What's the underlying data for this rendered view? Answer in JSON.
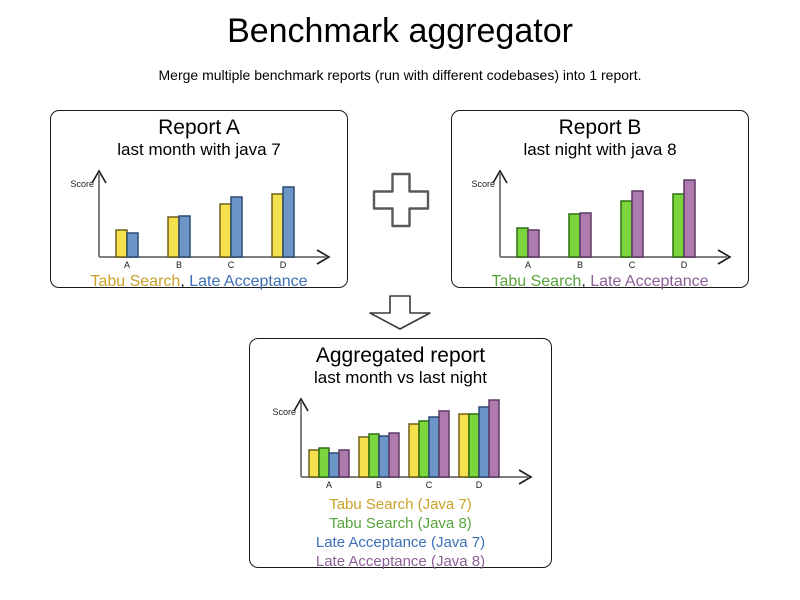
{
  "header": {
    "title": "Benchmark aggregator",
    "subtitle": "Merge multiple benchmark reports (run with different codebases) into 1 report."
  },
  "icons": {
    "plus": "plus",
    "down_arrow": "down-arrow"
  },
  "reports": [
    {
      "title": "Report A",
      "subtitle": "last month with java 7",
      "legend": [
        {
          "text": "Tabu Search",
          "color": "#C9A227"
        },
        {
          "text": ", ",
          "color": "#1A1A1A"
        },
        {
          "text": "Late Acceptance",
          "color": "#3E6FB7"
        }
      ]
    },
    {
      "title": "Report B",
      "subtitle": "last night with java 8",
      "legend": [
        {
          "text": "Tabu Search",
          "color": "#58A43C"
        },
        {
          "text": ", ",
          "color": "#1A1A1A"
        },
        {
          "text": "Late Acceptance",
          "color": "#8D5F97"
        }
      ]
    },
    {
      "title": "Aggregated report",
      "subtitle": "last month vs last night",
      "legend": [
        {
          "text": "Tabu Search (Java 7)",
          "color": "#C9A227"
        },
        {
          "text": "Tabu Search (Java 8)",
          "color": "#58A43C"
        },
        {
          "text": "Late Acceptance (Java 7)",
          "color": "#3E6FB7"
        },
        {
          "text": "Late Acceptance (Java 8)",
          "color": "#8D5F97"
        }
      ]
    }
  ],
  "chart_data": [
    {
      "type": "bar",
      "title": "Report A",
      "subtitle": "last month with java 7",
      "categories": [
        "A",
        "B",
        "C",
        "D"
      ],
      "series": [
        {
          "name": "Tabu Search",
          "values": [
            0.3,
            0.44,
            0.59,
            0.7
          ],
          "fill": "#F5E14E",
          "stroke": "#6E611C"
        },
        {
          "name": "Late Acceptance",
          "values": [
            0.27,
            0.45,
            0.67,
            0.78
          ],
          "fill": "#6C96C8",
          "stroke": "#2B4A72"
        }
      ],
      "xlabel": "",
      "ylabel": "Score",
      "ylim": [
        0,
        1
      ],
      "grid": false,
      "legend_position": "bottom",
      "axis_color": "#808080"
    },
    {
      "type": "bar",
      "title": "Report B",
      "subtitle": "last night with java 8",
      "categories": [
        "A",
        "B",
        "C",
        "D"
      ],
      "series": [
        {
          "name": "Tabu Search",
          "values": [
            0.32,
            0.48,
            0.62,
            0.7
          ],
          "fill": "#7BD53C",
          "stroke": "#2F6E12"
        },
        {
          "name": "Late Acceptance",
          "values": [
            0.3,
            0.49,
            0.73,
            0.85
          ],
          "fill": "#AF7BAF",
          "stroke": "#5C3A63"
        }
      ],
      "xlabel": "",
      "ylabel": "Score",
      "ylim": [
        0,
        1
      ],
      "grid": false,
      "legend_position": "bottom",
      "axis_color": "#808080"
    },
    {
      "type": "bar",
      "title": "Aggregated report",
      "subtitle": "last month vs last night",
      "categories": [
        "A",
        "B",
        "C",
        "D"
      ],
      "series": [
        {
          "name": "Tabu Search (Java 7)",
          "values": [
            0.3,
            0.44,
            0.59,
            0.7
          ],
          "fill": "#F5E14E",
          "stroke": "#6E611C"
        },
        {
          "name": "Tabu Search (Java 8)",
          "values": [
            0.32,
            0.48,
            0.62,
            0.7
          ],
          "fill": "#7BD53C",
          "stroke": "#2F6E12"
        },
        {
          "name": "Late Acceptance (Java 7)",
          "values": [
            0.27,
            0.45,
            0.67,
            0.78
          ],
          "fill": "#6C96C8",
          "stroke": "#2B4A72"
        },
        {
          "name": "Late Acceptance (Java 8)",
          "values": [
            0.3,
            0.49,
            0.73,
            0.85
          ],
          "fill": "#AF7BAF",
          "stroke": "#5C3A63"
        }
      ],
      "xlabel": "",
      "ylabel": "Score",
      "ylim": [
        0,
        1
      ],
      "grid": false,
      "legend_position": "bottom",
      "axis_color": "#808080"
    }
  ]
}
